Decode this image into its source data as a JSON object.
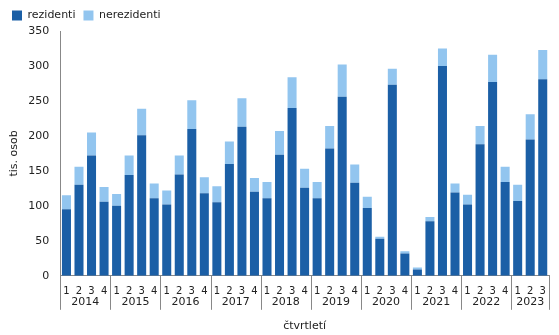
{
  "chart_data": {
    "type": "bar",
    "stacked": true,
    "grid": false,
    "legend": "top-left",
    "y_label": "tis. osob",
    "x_label": "čtvrtletí",
    "categories": [
      "1",
      "2",
      "3",
      "4",
      "1",
      "2",
      "3",
      "4",
      "1",
      "2",
      "3",
      "4",
      "1",
      "2",
      "3",
      "4",
      "1",
      "2",
      "3",
      "4",
      "1",
      "2",
      "3",
      "4",
      "1",
      "2",
      "3",
      "4",
      "1",
      "2",
      "3",
      "4",
      "1",
      "2",
      "3",
      "4",
      "1",
      "2",
      "3"
    ],
    "groups": [
      "2014",
      "2015",
      "2016",
      "2017",
      "2018",
      "2019",
      "2020",
      "2021",
      "2022",
      "2023"
    ],
    "ylim": [
      0,
      350
    ],
    "yticks": [
      0,
      50,
      100,
      150,
      200,
      250,
      300,
      350
    ],
    "series": [
      {
        "name": "rezidenti",
        "color": "#1b5fa6",
        "values": [
          95,
          130,
          172,
          106,
          100,
          144,
          201,
          111,
          102,
          145,
          210,
          118,
          105,
          160,
          213,
          120,
          111,
          173,
          240,
          126,
          111,
          182,
          256,
          133,
          97,
          53,
          273,
          32,
          9,
          78,
          300,
          119,
          102,
          188,
          277,
          134,
          107,
          195,
          281
        ]
      },
      {
        "name": "nerezidenti",
        "color": "#92c5ef",
        "values": [
          20,
          26,
          33,
          21,
          17,
          28,
          38,
          21,
          20,
          27,
          41,
          23,
          23,
          32,
          41,
          20,
          23,
          34,
          44,
          27,
          23,
          32,
          46,
          26,
          16,
          3,
          23,
          3,
          3,
          6,
          25,
          13,
          14,
          26,
          39,
          22,
          23,
          36,
          42
        ]
      }
    ]
  }
}
